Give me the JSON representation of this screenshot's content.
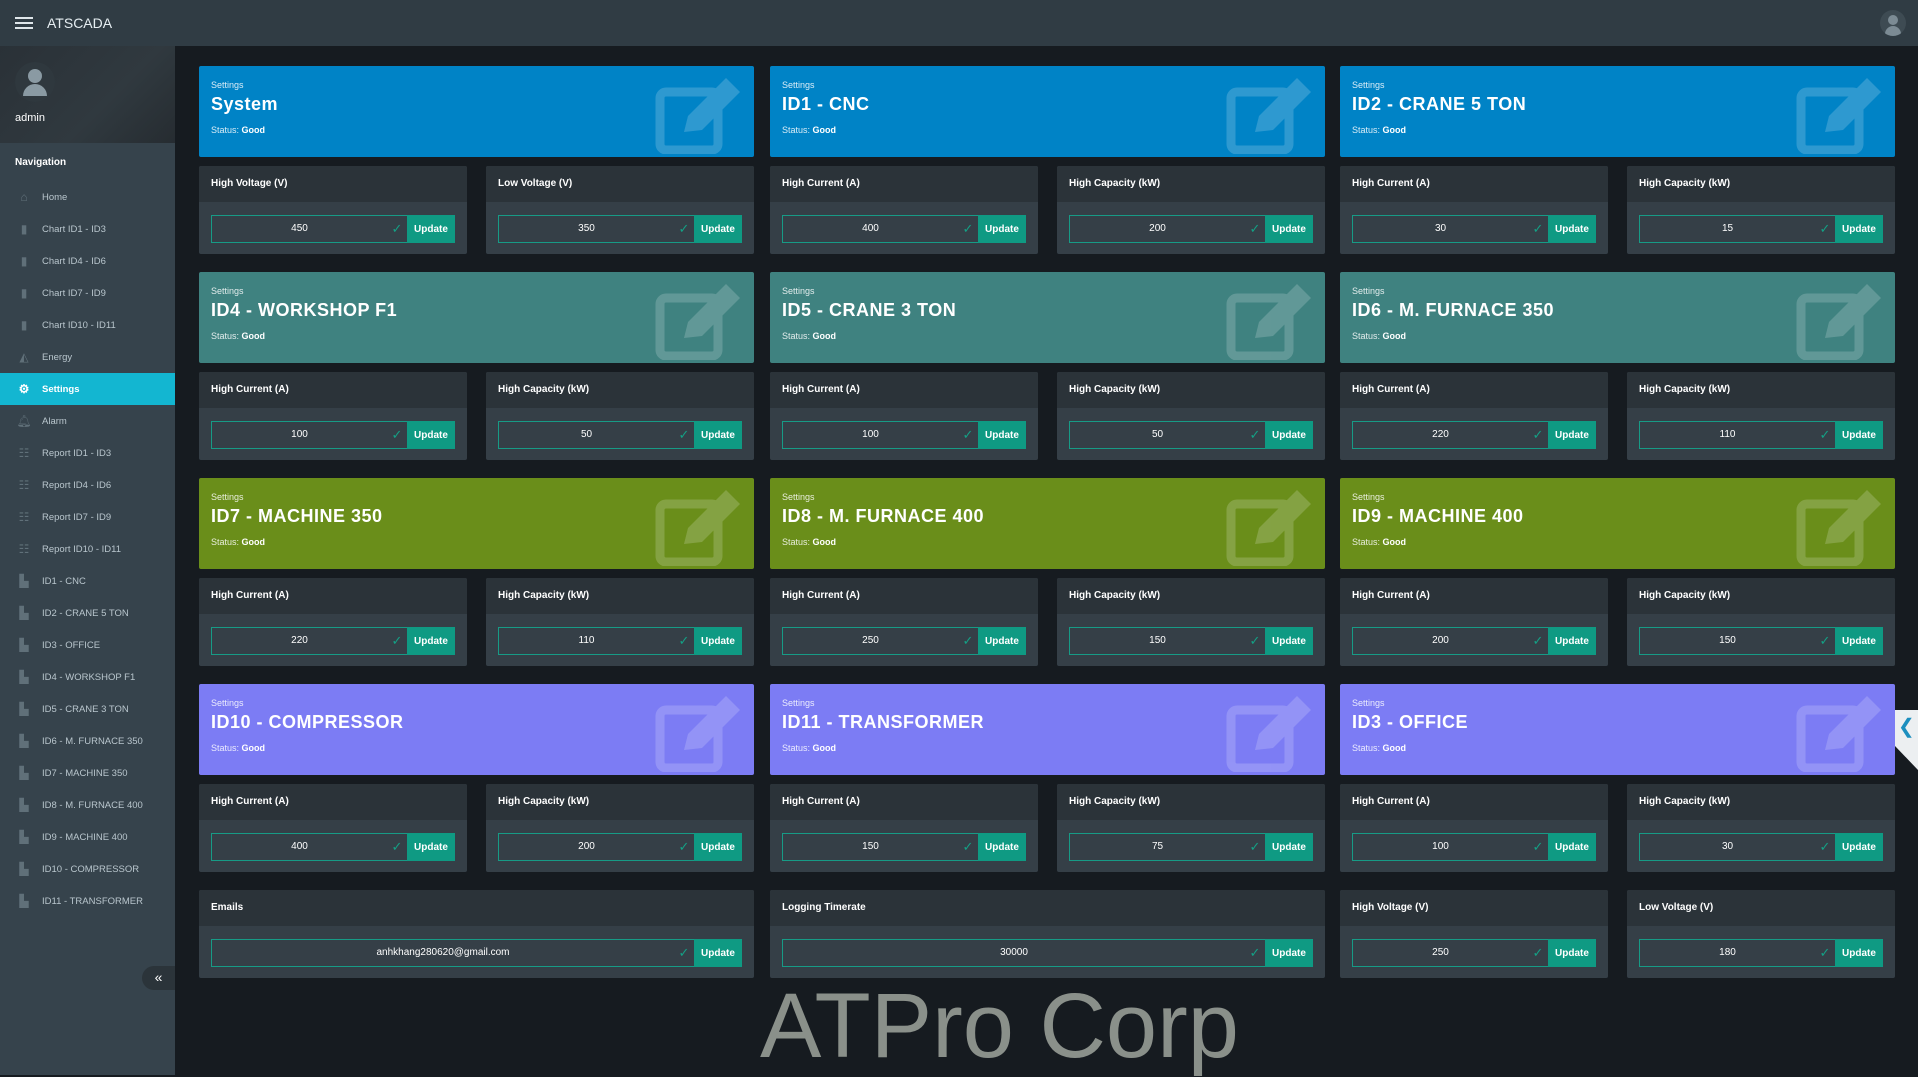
{
  "app": {
    "title": "ATSCADA",
    "user": "admin"
  },
  "sidebar": {
    "heading": "Navigation",
    "items": [
      {
        "label": "Home",
        "icon": "home-icon"
      },
      {
        "label": "Chart ID1 - ID3",
        "icon": "bar-chart-icon"
      },
      {
        "label": "Chart ID4 - ID6",
        "icon": "bar-chart-icon"
      },
      {
        "label": "Chart ID7 - ID9",
        "icon": "bar-chart-icon"
      },
      {
        "label": "Chart ID10 - ID11",
        "icon": "bar-chart-icon"
      },
      {
        "label": "Energy",
        "icon": "area-chart-icon"
      },
      {
        "label": "Settings",
        "icon": "gear-icon",
        "active": true
      },
      {
        "label": "Alarm",
        "icon": "bell-icon"
      },
      {
        "label": "Report ID1 - ID3",
        "icon": "report-icon"
      },
      {
        "label": "Report ID4 - ID6",
        "icon": "report-icon"
      },
      {
        "label": "Report ID7 - ID9",
        "icon": "report-icon"
      },
      {
        "label": "Report ID10 - ID11",
        "icon": "report-icon"
      },
      {
        "label": "ID1 - CNC",
        "icon": "device-icon"
      },
      {
        "label": "ID2 - CRANE 5 TON",
        "icon": "device-icon"
      },
      {
        "label": "ID3 - OFFICE",
        "icon": "device-icon"
      },
      {
        "label": "ID4 - WORKSHOP F1",
        "icon": "device-icon"
      },
      {
        "label": "ID5 - CRANE 3 TON",
        "icon": "device-icon"
      },
      {
        "label": "ID6 - M. FURNACE 350",
        "icon": "device-icon"
      },
      {
        "label": "ID7 - MACHINE 350",
        "icon": "device-icon"
      },
      {
        "label": "ID8 - M. FURNACE 400",
        "icon": "device-icon"
      },
      {
        "label": "ID9 - MACHINE 400",
        "icon": "device-icon"
      },
      {
        "label": "ID10 - COMPRESSOR",
        "icon": "device-icon"
      },
      {
        "label": "ID11 - TRANSFORMER",
        "icon": "device-icon"
      }
    ],
    "collapse_label": "«"
  },
  "common": {
    "settings_label": "Settings",
    "status_prefix": "Status:",
    "update_label": "Update",
    "check": "✓"
  },
  "colors": {
    "blue": "#0083c6",
    "teal": "#3f8280",
    "green": "#6a8e1a",
    "purple": "#7c7cf4",
    "update": "#0f9a83"
  },
  "panels": [
    {
      "title": "System",
      "status": "Good",
      "color": "#0083c6",
      "fields": [
        {
          "label": "High Voltage (V)",
          "value": "450"
        },
        {
          "label": "Low Voltage (V)",
          "value": "350"
        }
      ]
    },
    {
      "title": "ID1 - CNC",
      "status": "Good",
      "color": "#0083c6",
      "fields": [
        {
          "label": "High Current (A)",
          "value": "400"
        },
        {
          "label": "High Capacity (kW)",
          "value": "200"
        }
      ]
    },
    {
      "title": "ID2 - CRANE 5 TON",
      "status": "Good",
      "color": "#0083c6",
      "fields": [
        {
          "label": "High Current (A)",
          "value": "30"
        },
        {
          "label": "High Capacity (kW)",
          "value": "15"
        }
      ]
    },
    {
      "title": "ID4 - WORKSHOP F1",
      "status": "Good",
      "color": "#3f8280",
      "fields": [
        {
          "label": "High Current (A)",
          "value": "100"
        },
        {
          "label": "High Capacity (kW)",
          "value": "50"
        }
      ]
    },
    {
      "title": "ID5 - CRANE 3 TON",
      "status": "Good",
      "color": "#3f8280",
      "fields": [
        {
          "label": "High Current (A)",
          "value": "100"
        },
        {
          "label": "High Capacity (kW)",
          "value": "50"
        }
      ]
    },
    {
      "title": "ID6 - M. FURNACE 350",
      "status": "Good",
      "color": "#3f8280",
      "fields": [
        {
          "label": "High Current (A)",
          "value": "220"
        },
        {
          "label": "High Capacity (kW)",
          "value": "110"
        }
      ]
    },
    {
      "title": "ID7 - MACHINE 350",
      "status": "Good",
      "color": "#6a8e1a",
      "fields": [
        {
          "label": "High Current (A)",
          "value": "220"
        },
        {
          "label": "High Capacity (kW)",
          "value": "110"
        }
      ]
    },
    {
      "title": "ID8 - M. FURNACE 400",
      "status": "Good",
      "color": "#6a8e1a",
      "fields": [
        {
          "label": "High Current (A)",
          "value": "250"
        },
        {
          "label": "High Capacity (kW)",
          "value": "150"
        }
      ]
    },
    {
      "title": "ID9 - MACHINE 400",
      "status": "Good",
      "color": "#6a8e1a",
      "fields": [
        {
          "label": "High Current (A)",
          "value": "200"
        },
        {
          "label": "High Capacity (kW)",
          "value": "150"
        }
      ]
    },
    {
      "title": "ID10 - COMPRESSOR",
      "status": "Good",
      "color": "#7c7cf4",
      "fields": [
        {
          "label": "High Current (A)",
          "value": "400"
        },
        {
          "label": "High Capacity (kW)",
          "value": "200"
        }
      ]
    },
    {
      "title": "ID11 - TRANSFORMER",
      "status": "Good",
      "color": "#7c7cf4",
      "fields": [
        {
          "label": "High Current (A)",
          "value": "150"
        },
        {
          "label": "High Capacity (kW)",
          "value": "75"
        }
      ]
    },
    {
      "title": "ID3 - OFFICE",
      "status": "Good",
      "color": "#7c7cf4",
      "fields": [
        {
          "label": "High Current (A)",
          "value": "100"
        },
        {
          "label": "High Capacity (kW)",
          "value": "30"
        }
      ]
    }
  ],
  "bottom": [
    {
      "label": "Emails",
      "value": "anhkhang280620@gmail.com",
      "wide": true
    },
    {
      "label": "Logging Timerate",
      "value": "30000",
      "wide": true
    },
    {
      "label": "High Voltage (V)",
      "value": "250"
    },
    {
      "label": "Low Voltage (V)",
      "value": "180"
    }
  ],
  "watermark": "ATPro Corp"
}
